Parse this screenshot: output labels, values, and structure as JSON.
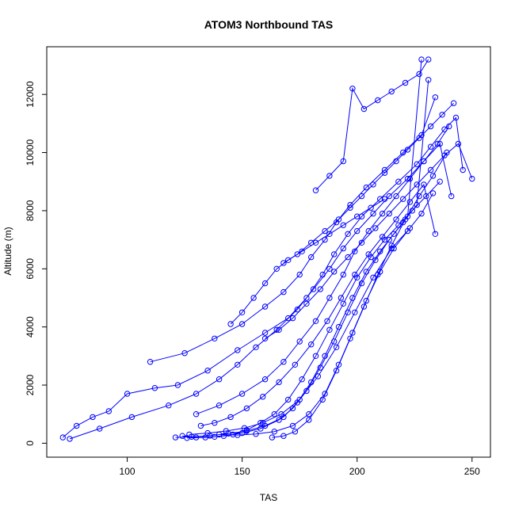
{
  "chart_data": {
    "type": "scatter",
    "title": "ATOM3 Northbound TAS",
    "xlabel": "TAS",
    "ylabel": "Altitude (m)",
    "xlim": [
      65,
      258
    ],
    "ylim": [
      -480,
      13640
    ],
    "x_ticks": [
      100,
      150,
      200,
      250
    ],
    "y_ticks": [
      0,
      2000,
      4000,
      6000,
      8000,
      10000,
      12000
    ],
    "x_tick_labels": [
      "100",
      "150",
      "200",
      "250"
    ],
    "y_tick_labels": [
      "0",
      "2000",
      "4000",
      "6000",
      "8000",
      "10000",
      "12000"
    ],
    "grid": false,
    "legend": "none",
    "series_style": "points-and-lines",
    "color": "#0000ff",
    "series": [
      {
        "x": [
          72,
          78,
          85,
          92,
          100,
          112,
          122,
          135,
          148,
          160,
          170,
          178,
          185,
          190,
          196,
          202,
          210,
          218,
          226,
          232,
          238,
          243,
          246
        ],
        "y": [
          200,
          600,
          900,
          1100,
          1700,
          1900,
          2000,
          2500,
          3200,
          3800,
          4300,
          5000,
          5800,
          6500,
          7200,
          7800,
          8400,
          9000,
          9600,
          10200,
          10800,
          11200,
          9400
        ]
      },
      {
        "x": [
          75,
          88,
          102,
          118,
          130,
          140,
          148,
          156,
          165,
          174,
          181,
          188,
          194,
          200,
          207,
          214,
          222,
          229,
          236,
          241
        ],
        "y": [
          150,
          500,
          900,
          1300,
          1700,
          2200,
          2700,
          3300,
          3900,
          4600,
          5300,
          6000,
          6700,
          7300,
          7900,
          8500,
          9100,
          9700,
          10300,
          8500
        ]
      },
      {
        "x": [
          110,
          125,
          138,
          150,
          160,
          168,
          175,
          180,
          186,
          191,
          197,
          204,
          212,
          220,
          228,
          234
        ],
        "y": [
          2800,
          3100,
          3600,
          4100,
          4700,
          5200,
          5800,
          6400,
          7000,
          7600,
          8200,
          8800,
          9400,
          10000,
          10600,
          11900
        ]
      },
      {
        "x": [
          124,
          130,
          138,
          146,
          152,
          158,
          164,
          170,
          176,
          182,
          188,
          194,
          200,
          206,
          212,
          218,
          224,
          230,
          236
        ],
        "y": [
          250,
          200,
          220,
          300,
          450,
          700,
          1000,
          1500,
          2200,
          3000,
          3900,
          4800,
          5700,
          6400,
          7000,
          7500,
          8000,
          8500,
          9000
        ]
      },
      {
        "x": [
          126,
          134,
          142,
          150,
          158,
          166,
          172,
          178,
          184,
          190,
          196,
          202,
          208,
          214,
          220,
          226,
          231
        ],
        "y": [
          180,
          200,
          250,
          350,
          500,
          800,
          1200,
          1800,
          2600,
          3500,
          4500,
          5500,
          6300,
          7000,
          7600,
          8200,
          12500
        ]
      },
      {
        "x": [
          121,
          128,
          136,
          144,
          152,
          160,
          168,
          174,
          180,
          186,
          192,
          198,
          204,
          210,
          216,
          222,
          228
        ],
        "y": [
          200,
          220,
          260,
          330,
          420,
          600,
          900,
          1400,
          2100,
          3000,
          4000,
          5000,
          5900,
          6600,
          7200,
          7800,
          13200
        ]
      },
      {
        "x": [
          130,
          140,
          150,
          160,
          168,
          175,
          182,
          188,
          194,
          199,
          205,
          211,
          217,
          223,
          229,
          235,
          240
        ],
        "y": [
          1000,
          1300,
          1700,
          2200,
          2800,
          3500,
          4200,
          5000,
          5800,
          6600,
          7300,
          7900,
          8500,
          9100,
          9700,
          10300,
          10900
        ]
      },
      {
        "x": [
          140,
          148,
          156,
          164,
          172,
          179,
          186,
          192,
          198,
          204,
          210,
          216,
          222,
          228,
          233
        ],
        "y": [
          300,
          280,
          320,
          400,
          600,
          1000,
          1700,
          2700,
          3800,
          4900,
          5900,
          6700,
          7300,
          7900,
          8600
        ]
      },
      {
        "x": [
          160,
          166,
          172,
          178,
          184,
          190,
          196,
          202,
          208,
          214,
          220,
          226,
          232,
          238,
          244,
          250
        ],
        "y": [
          3600,
          3900,
          4300,
          4800,
          5300,
          5900,
          6400,
          6900,
          7400,
          7900,
          8400,
          8900,
          9400,
          9900,
          10300,
          9100
        ]
      },
      {
        "x": [
          132,
          138,
          145,
          152,
          159,
          166,
          173,
          180,
          187,
          193,
          199,
          205,
          211,
          217,
          223,
          229,
          234
        ],
        "y": [
          600,
          700,
          900,
          1200,
          1600,
          2100,
          2700,
          3400,
          4200,
          5000,
          5800,
          6500,
          7100,
          7700,
          8300,
          8900,
          7200
        ]
      },
      {
        "x": [
          168,
          174,
          180,
          186,
          192,
          197,
          202,
          207,
          212,
          217,
          222,
          227,
          232,
          237,
          242
        ],
        "y": [
          6200,
          6500,
          6900,
          7300,
          7700,
          8100,
          8500,
          8900,
          9300,
          9700,
          10100,
          10500,
          10900,
          11300,
          11700
        ]
      },
      {
        "x": [
          127,
          135,
          143,
          151,
          159,
          167,
          175,
          183,
          191,
          199,
          207,
          215,
          223
        ],
        "y": [
          300,
          350,
          420,
          520,
          700,
          1000,
          1500,
          2300,
          3300,
          4500,
          5700,
          6700,
          7400
        ]
      },
      {
        "x": [
          182,
          188,
          194,
          198,
          203,
          209,
          215,
          221,
          227,
          231
        ],
        "y": [
          8700,
          9200,
          9700,
          12200,
          11500,
          11800,
          12100,
          12400,
          12700,
          13200
        ]
      },
      {
        "x": [
          145,
          150,
          155,
          160,
          165,
          170,
          176,
          182,
          188,
          194,
          200,
          206,
          212
        ],
        "y": [
          4100,
          4500,
          5000,
          5500,
          6000,
          6300,
          6600,
          6900,
          7200,
          7500,
          7800,
          8100,
          8400
        ]
      },
      {
        "x": [
          163,
          168,
          173,
          179,
          185,
          191,
          197,
          203,
          209,
          215,
          221,
          227,
          233,
          239
        ],
        "y": [
          200,
          250,
          400,
          800,
          1500,
          2500,
          3600,
          4700,
          5800,
          6800,
          7700,
          8500,
          9200,
          10000
        ]
      }
    ]
  }
}
